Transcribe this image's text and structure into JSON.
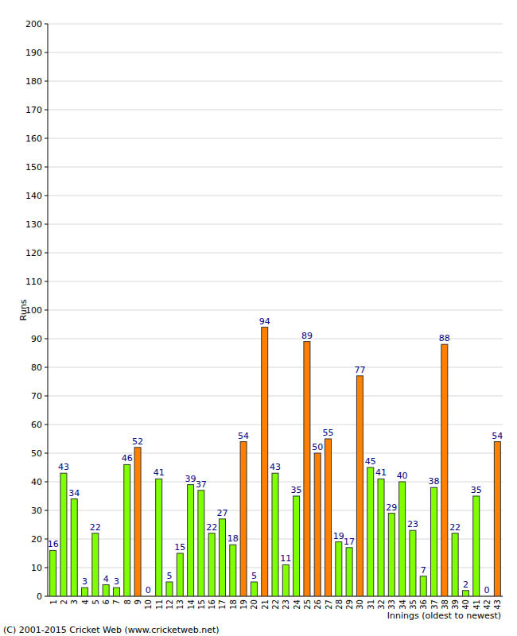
{
  "chart_data": {
    "type": "bar",
    "y_label": "Runs",
    "x_label": "Innings (oldest to newest)",
    "annotations": [
      "(C) 2001-2015 Cricket Web (www.cricketweb.net)"
    ],
    "categories": [
      "1",
      "2",
      "3",
      "4",
      "5",
      "6",
      "7",
      "8",
      "9",
      "10",
      "11",
      "12",
      "13",
      "14",
      "15",
      "16",
      "17",
      "18",
      "19",
      "20",
      "21",
      "22",
      "23",
      "24",
      "25",
      "26",
      "27",
      "28",
      "29",
      "30",
      "31",
      "32",
      "33",
      "34",
      "35",
      "36",
      "37",
      "38",
      "39",
      "40",
      "41",
      "42",
      "43"
    ],
    "values": [
      16,
      43,
      34,
      3,
      22,
      4,
      3,
      46,
      52,
      0,
      41,
      5,
      15,
      39,
      37,
      22,
      27,
      18,
      54,
      5,
      94,
      43,
      11,
      35,
      89,
      50,
      55,
      19,
      17,
      77,
      45,
      41,
      29,
      40,
      23,
      7,
      38,
      88,
      22,
      2,
      35,
      0,
      54
    ],
    "colors": [
      "#80ff00",
      "#80ff00",
      "#80ff00",
      "#80ff00",
      "#80ff00",
      "#80ff00",
      "#80ff00",
      "#80ff00",
      "#ff8000",
      "#80ff00",
      "#80ff00",
      "#80ff00",
      "#80ff00",
      "#80ff00",
      "#80ff00",
      "#80ff00",
      "#80ff00",
      "#80ff00",
      "#ff8000",
      "#80ff00",
      "#ff8000",
      "#80ff00",
      "#80ff00",
      "#80ff00",
      "#ff8000",
      "#ff8000",
      "#ff8000",
      "#80ff00",
      "#80ff00",
      "#ff8000",
      "#80ff00",
      "#80ff00",
      "#80ff00",
      "#80ff00",
      "#80ff00",
      "#80ff00",
      "#80ff00",
      "#ff8000",
      "#80ff00",
      "#80ff00",
      "#80ff00",
      "#80ff00",
      "#ff8000"
    ],
    "ylim": [
      0,
      200
    ],
    "yticks": [
      0,
      10,
      20,
      30,
      40,
      50,
      60,
      70,
      80,
      90,
      100,
      110,
      120,
      130,
      140,
      150,
      160,
      170,
      180,
      190,
      200
    ],
    "grid": true,
    "data_labels": true
  }
}
